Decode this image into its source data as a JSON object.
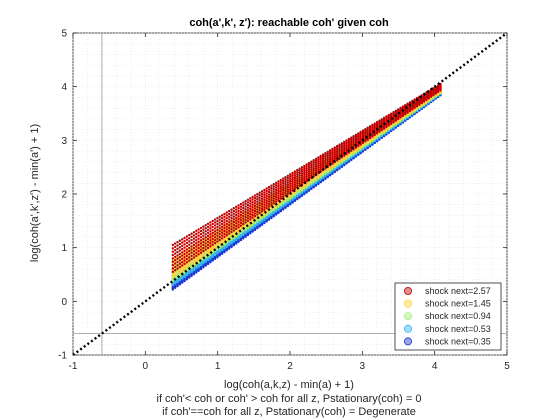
{
  "chart_data": {
    "type": "scatter",
    "title": "coh(a',k', z'): reachable coh' given coh",
    "xlabel": "log(coh(a,k,z) - min(a) + 1)",
    "ylabel": "log(coh(a',k',z') - min(a') + 1)",
    "notes": [
      "if coh'< coh or coh' > coh for all z, Pstationary(coh) = 0",
      "if coh'==coh for all z, Pstationary(coh) = Degenerate"
    ],
    "xlim": [
      -1,
      5
    ],
    "ylim": [
      -1,
      5
    ],
    "xticks": [
      -1,
      0,
      1,
      2,
      3,
      4,
      5
    ],
    "yticks": [
      -1,
      0,
      1,
      2,
      3,
      4,
      5
    ],
    "grid": "minor-dotted",
    "reference_lines": {
      "vertical_x": -0.6,
      "horizontal_y": -0.6
    },
    "diagonal": {
      "from": [
        -1,
        -1
      ],
      "to": [
        5,
        5
      ],
      "style": "dotted",
      "color": "#000000"
    },
    "legend_position": "bottom-right",
    "series": [
      {
        "name": "shock next=2.57",
        "color": "#c00000",
        "x_range": [
          0.38,
          4.08
        ],
        "y_start_low": 0.55,
        "y_start_high": 1.05,
        "y_end_low": 3.93,
        "y_end_high": 4.05
      },
      {
        "name": "shock next=1.45",
        "color": "#ffd23c",
        "x_range": [
          0.38,
          4.08
        ],
        "y_start_low": 0.45,
        "y_start_high": 0.8,
        "y_end_low": 3.9,
        "y_end_high": 4.0
      },
      {
        "name": "shock next=0.94",
        "color": "#9ff27a",
        "x_range": [
          0.38,
          4.08
        ],
        "y_start_low": 0.38,
        "y_start_high": 0.6,
        "y_end_low": 3.88,
        "y_end_high": 3.96
      },
      {
        "name": "shock next=0.53",
        "color": "#33b5ff",
        "x_range": [
          0.38,
          4.08
        ],
        "y_start_low": 0.3,
        "y_start_high": 0.48,
        "y_end_low": 3.86,
        "y_end_high": 3.93
      },
      {
        "name": "shock next=0.35",
        "color": "#1f35c8",
        "x_range": [
          0.38,
          4.08
        ],
        "y_start_low": 0.22,
        "y_start_high": 0.36,
        "y_end_low": 3.84,
        "y_end_high": 3.9
      }
    ]
  }
}
